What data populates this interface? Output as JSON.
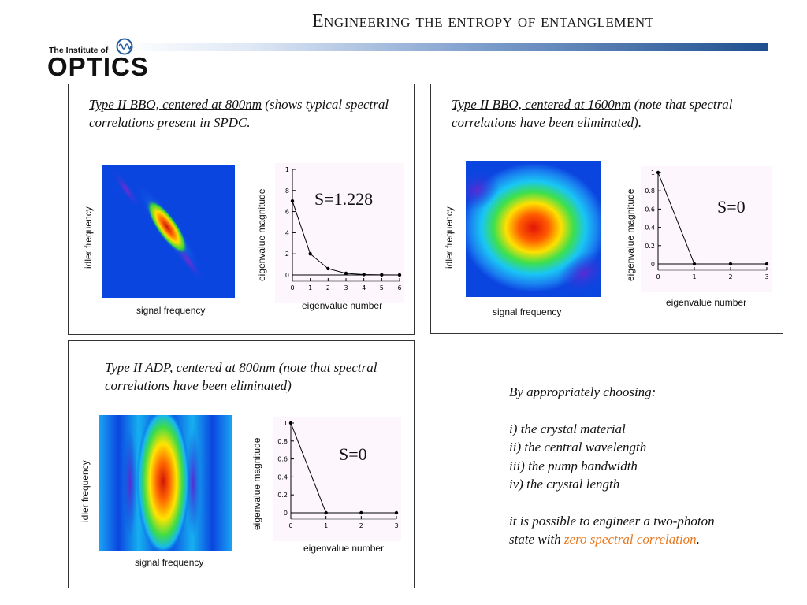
{
  "header": {
    "title": "Engineering the entropy of entanglement"
  },
  "logo": {
    "small": "The Institute of",
    "big": "OPTICS",
    "icon": "wave-circle-icon"
  },
  "panels": [
    {
      "caption_u": "Type II BBO, centered at 800nm",
      "caption_rest": " (shows typical spectral correlations present in SPDC.",
      "ylabel": "idler frequency",
      "xlabel": "signal frequency",
      "plot_ylabel": "eigenvalue magnitude",
      "plot_xlabel": "eigenvalue number",
      "entropy": "S=1.228"
    },
    {
      "caption_u": "Type II BBO, centered at 1600nm",
      "caption_rest": " (note that spectral correlations have been eliminated).",
      "ylabel": "idler frequency",
      "xlabel": "signal frequency",
      "plot_ylabel": "eigenvalue magnitude",
      "plot_xlabel": "eigenvalue number",
      "entropy": "S=0"
    },
    {
      "caption_u": "Type II ADP, centered at 800nm",
      "caption_rest": " (note that spectral correlations have been eliminated)",
      "ylabel": "idler frequency",
      "xlabel": "signal frequency",
      "plot_ylabel": "eigenvalue magnitude",
      "plot_xlabel": "eigenvalue number",
      "entropy": "S=0"
    }
  ],
  "notes": {
    "intro": "By appropriately choosing:",
    "items": [
      "i) the crystal material",
      "ii) the central wavelength",
      "iii) the pump bandwidth",
      "iv) the crystal length"
    ],
    "conclusion_a": "it is possible to engineer a two-photon",
    "conclusion_b": "state with ",
    "conclusion_hl": "zero spectral correlation",
    "conclusion_end": "."
  },
  "chart_data": [
    {
      "type": "line",
      "x": [
        0,
        1,
        2,
        3,
        4,
        5,
        6
      ],
      "values": [
        0.7,
        0.2,
        0.06,
        0.015,
        0.004,
        0.001,
        0.0003
      ],
      "xlabel": "eigenvalue number",
      "ylabel": "eigenvalue magnitude",
      "xticks": [
        "0",
        "1",
        "2",
        "3",
        "4",
        "5",
        "6"
      ],
      "yticks": [
        "0",
        ".2",
        ".4",
        ".6",
        ".8",
        "1"
      ],
      "ylim": [
        0,
        1
      ]
    },
    {
      "type": "line",
      "x": [
        0,
        1,
        2,
        3
      ],
      "values": [
        1,
        0,
        0,
        0
      ],
      "xlabel": "eigenvalue number",
      "ylabel": "eigenvalue magnitude",
      "xticks": [
        "0",
        "1",
        "2",
        "3"
      ],
      "yticks": [
        "0",
        "0.2",
        "0.4",
        "0.6",
        "0.8",
        "1"
      ],
      "ylim": [
        0,
        1
      ]
    },
    {
      "type": "line",
      "x": [
        0,
        1,
        2,
        3
      ],
      "values": [
        1,
        0,
        0,
        0
      ],
      "xlabel": "eigenvalue number",
      "ylabel": "eigenvalue magnitude",
      "xticks": [
        "0",
        "1",
        "2",
        "3"
      ],
      "yticks": [
        "0",
        "0.2",
        "0.4",
        "0.6",
        "0.8",
        "1"
      ],
      "ylim": [
        0,
        1
      ]
    }
  ]
}
